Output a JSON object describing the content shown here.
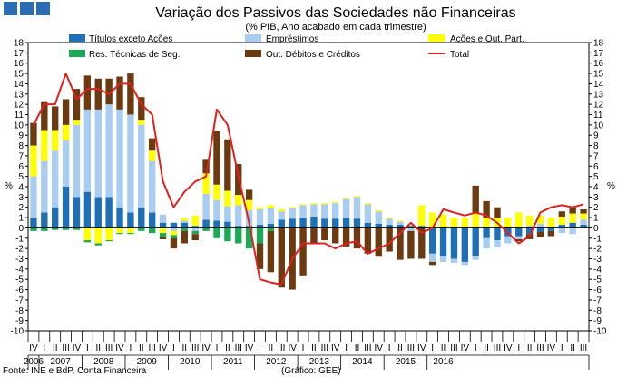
{
  "chart_data": {
    "type": "bar",
    "title": "Variação dos Passivos das Sociedades não Financeiras",
    "subtitle": "(% PIB, Ano acabado em cada trimestre)",
    "ylabel_left": "%",
    "ylabel_right": "%",
    "ylim": [
      -10,
      18
    ],
    "yticks": [
      -10,
      -9,
      -8,
      -7,
      -6,
      -5,
      -4,
      -3,
      -2,
      -1,
      0,
      1,
      2,
      3,
      4,
      5,
      6,
      7,
      8,
      9,
      10,
      11,
      12,
      13,
      14,
      15,
      16,
      17,
      18
    ],
    "quarters": [
      "IV",
      "I",
      "II",
      "III",
      "IV",
      "I",
      "II",
      "III",
      "IV",
      "I",
      "II",
      "III",
      "IV",
      "I",
      "II",
      "III",
      "IV",
      "I",
      "II",
      "III",
      "IV",
      "I",
      "II",
      "III",
      "IV",
      "I",
      "II",
      "III",
      "IV",
      "I",
      "II",
      "III",
      "IV",
      "I",
      "II",
      "III",
      "IV",
      "I",
      "II",
      "III",
      "IV",
      "I",
      "II",
      "III",
      "IV",
      "I",
      "II",
      "III",
      "IV",
      "I",
      "II",
      "III"
    ],
    "years": [
      {
        "label": "2006",
        "start": 0,
        "count": 1
      },
      {
        "label": "2007",
        "start": 1,
        "count": 4
      },
      {
        "label": "2008",
        "start": 5,
        "count": 4
      },
      {
        "label": "2009",
        "start": 9,
        "count": 4
      },
      {
        "label": "2010",
        "start": 13,
        "count": 4
      },
      {
        "label": "2011",
        "start": 17,
        "count": 4
      },
      {
        "label": "2012",
        "start": 21,
        "count": 4
      },
      {
        "label": "2013",
        "start": 25,
        "count": 4
      },
      {
        "label": "2014",
        "start": 29,
        "count": 4
      },
      {
        "label": "2015",
        "start": 33,
        "count": 4
      },
      {
        "label": "2016",
        "start": 37,
        "count": 3
      }
    ],
    "series": [
      {
        "key": "titulos",
        "name": "Títulos exceto Ações",
        "color": "#1f6fb5",
        "type": "bar",
        "values": [
          1.0,
          1.5,
          2.0,
          4.0,
          3.0,
          3.5,
          3.0,
          3.0,
          2.0,
          1.5,
          2.0,
          1.5,
          0.5,
          0.5,
          0.5,
          0.2,
          0.8,
          0.7,
          0.6,
          0.2,
          0.2,
          0.3,
          0.4,
          0.8,
          0.9,
          1.0,
          1.1,
          0.9,
          0.9,
          1.0,
          0.9,
          0.5,
          0.4,
          0.3,
          0.3,
          0.2,
          0.2,
          -2.5,
          -2.8,
          -3.0,
          -3.3,
          -2.7,
          -1.0,
          -1.2,
          -0.8,
          -0.8,
          -0.6,
          -0.4,
          -0.3,
          0.3,
          0.5,
          0.3
        ]
      },
      {
        "key": "emprestimos",
        "name": "Empréstimos",
        "color": "#a8cdf0",
        "type": "bar",
        "values": [
          4.0,
          5.0,
          5.5,
          4.5,
          7.0,
          8.0,
          8.5,
          9.0,
          9.5,
          9.5,
          8.0,
          5.0,
          0.8,
          -0.3,
          0.2,
          -0.3,
          2.5,
          2.0,
          1.5,
          2.0,
          1.5,
          1.5,
          1.5,
          0.8,
          1.0,
          1.2,
          1.2,
          1.4,
          1.5,
          1.8,
          2.1,
          1.8,
          1.2,
          0.6,
          0.3,
          -0.3,
          0.0,
          -0.8,
          -0.5,
          -0.4,
          -0.3,
          -0.4,
          -1.0,
          -0.7,
          -0.7,
          -0.3,
          0.2,
          0.4,
          0.0,
          -0.5,
          -0.6,
          0.5
        ]
      },
      {
        "key": "acoes",
        "name": "Ações e Out. Part.",
        "color": "#ffff00",
        "type": "bar",
        "values": [
          3.0,
          3.0,
          2.0,
          1.5,
          0.5,
          -1.2,
          -1.5,
          -1.2,
          -0.5,
          -0.5,
          0.5,
          1.0,
          -0.5,
          -0.4,
          0.3,
          1.0,
          2.0,
          1.5,
          1.5,
          1.0,
          1.0,
          0.2,
          0.3,
          0.2,
          0.1,
          0.1,
          0.1,
          0.1,
          0.1,
          0.1,
          0.1,
          0.1,
          0.1,
          0.1,
          0.1,
          0.1,
          2.0,
          1.5,
          1.3,
          1.0,
          1.0,
          1.5,
          1.0,
          1.0,
          1.0,
          1.5,
          1.0,
          0.8,
          1.0,
          0.8,
          0.9,
          0.6
        ]
      },
      {
        "key": "tecnicas",
        "name": "Res. Técnicas de Seg.",
        "color": "#1aaa55",
        "type": "bar",
        "values": [
          -0.3,
          -0.3,
          -0.2,
          -0.2,
          -0.2,
          -0.2,
          -0.2,
          -0.1,
          -0.1,
          -0.1,
          -0.3,
          -0.5,
          -0.4,
          -0.3,
          -0.3,
          -0.3,
          -0.3,
          -1.0,
          -1.3,
          -1.5,
          -2.0,
          -1.5,
          -0.3,
          0.0,
          0.0,
          0.0,
          0.0,
          0.0,
          0.0,
          0.0,
          0.0,
          0.0,
          0.0,
          0.0,
          0.0,
          0.0,
          0.0,
          0.0,
          0.0,
          0.0,
          0.0,
          0.0,
          0.0,
          0.0,
          0.0,
          0.0,
          0.0,
          0.0,
          0.0,
          0.0,
          0.0,
          0.0
        ]
      },
      {
        "key": "outros",
        "name": "Out. Débitos e Créditos",
        "color": "#6b3a10",
        "type": "bar",
        "values": [
          2.2,
          2.8,
          2.3,
          2.5,
          3.0,
          3.3,
          3.0,
          2.5,
          3.2,
          4.0,
          2.2,
          1.2,
          -0.2,
          -1.0,
          -1.2,
          -0.6,
          1.4,
          5.2,
          5.0,
          3.0,
          1.0,
          -2.5,
          -4.0,
          -5.8,
          -6.0,
          -4.7,
          -1.5,
          -1.2,
          -1.5,
          -1.8,
          -2.0,
          -2.5,
          -2.8,
          -2.3,
          -3.1,
          -2.7,
          -3.0,
          -0.3,
          0.0,
          0.0,
          0.0,
          2.6,
          1.6,
          1.0,
          0.0,
          -0.2,
          -0.5,
          -0.5,
          -0.5,
          0.5,
          0.6,
          0.4
        ]
      },
      {
        "key": "total",
        "name": "Total",
        "color": "#e0201e",
        "type": "line",
        "values": [
          10.0,
          12.0,
          12.0,
          15.0,
          12.5,
          13.5,
          13.5,
          13.0,
          14.0,
          14.0,
          12.0,
          11.0,
          4.5,
          2.0,
          3.5,
          4.5,
          5.0,
          11.5,
          10.0,
          5.0,
          0.5,
          -5.0,
          -5.3,
          -5.5,
          -3.0,
          -1.5,
          -1.5,
          -1.5,
          -2.0,
          -1.5,
          -1.3,
          -2.5,
          -2.0,
          -1.5,
          -0.5,
          0.5,
          -0.5,
          0.0,
          1.8,
          1.5,
          1.2,
          1.5,
          1.2,
          0.5,
          -0.5,
          -1.5,
          -0.8,
          1.5,
          2.0,
          2.2,
          2.0,
          2.3
        ]
      }
    ],
    "legend": {
      "position": "top",
      "order": [
        "titulos",
        "emprestimos",
        "acoes",
        "tecnicas",
        "outros",
        "total"
      ]
    }
  },
  "footer": {
    "source": "Fonte: INE e BdP, Conta Financeira",
    "credit": "(Gráfico: GEE)"
  }
}
